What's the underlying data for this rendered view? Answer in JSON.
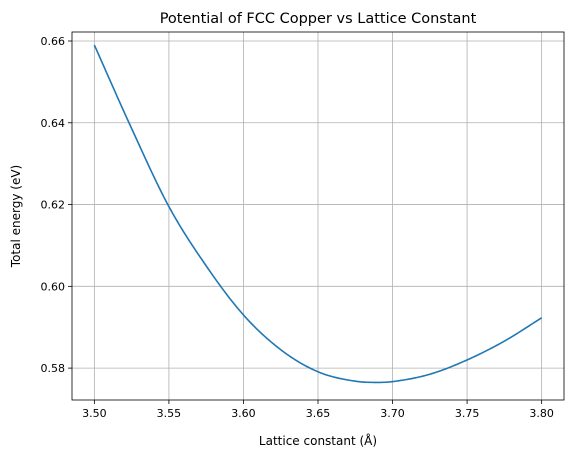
{
  "chart_data": {
    "type": "line",
    "title": "Potential of FCC Copper vs Lattice Constant",
    "xlabel": "Lattice constant (Å)",
    "ylabel": "Total energy (eV)",
    "xlim": [
      3.485,
      3.815
    ],
    "ylim": [
      0.5722,
      0.6622
    ],
    "x_ticks": [
      3.5,
      3.55,
      3.6,
      3.65,
      3.7,
      3.75,
      3.8
    ],
    "x_tick_labels": [
      "3.50",
      "3.55",
      "3.60",
      "3.65",
      "3.70",
      "3.75",
      "3.80"
    ],
    "y_ticks": [
      0.58,
      0.6,
      0.62,
      0.64,
      0.66
    ],
    "y_tick_labels": [
      "0.58",
      "0.60",
      "0.62",
      "0.64",
      "0.66"
    ],
    "grid": true,
    "series": [
      {
        "color": "#1f77b4",
        "x": [
          3.5,
          3.525,
          3.55,
          3.575,
          3.6,
          3.625,
          3.65,
          3.675,
          3.69,
          3.7,
          3.725,
          3.75,
          3.775,
          3.8
        ],
        "y": [
          0.659,
          0.6386,
          0.6195,
          0.605,
          0.593,
          0.5845,
          0.5791,
          0.5768,
          0.5765,
          0.5767,
          0.5785,
          0.582,
          0.5866,
          0.5923
        ]
      }
    ]
  }
}
